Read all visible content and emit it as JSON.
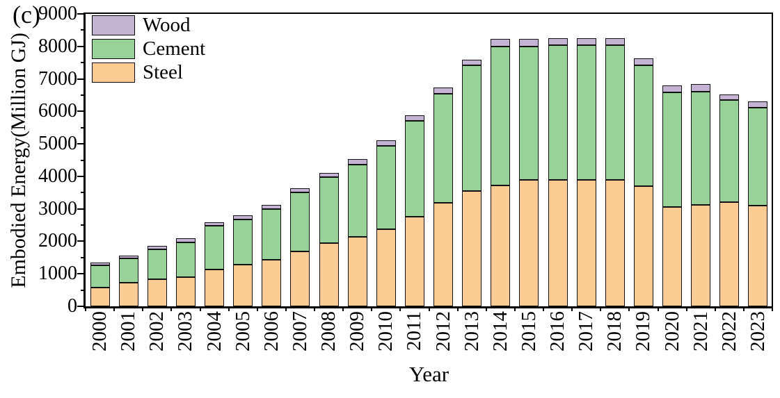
{
  "panel_label": "(c)",
  "chart_data": {
    "type": "bar",
    "stacked": true,
    "title": "",
    "xlabel": "Year",
    "ylabel": "Embodied Energy(Million GJ)",
    "ylim": [
      0,
      9000
    ],
    "ytick_step": 1000,
    "ytick_minor_step": 500,
    "grid": false,
    "legend_position": "top-left",
    "legend_order": [
      "Wood",
      "Cement",
      "Steel"
    ],
    "categories": [
      "2000",
      "2001",
      "2002",
      "2003",
      "2004",
      "2005",
      "2006",
      "2007",
      "2008",
      "2009",
      "2010",
      "2011",
      "2012",
      "2013",
      "2014",
      "2015",
      "2016",
      "2017",
      "2018",
      "2019",
      "2020",
      "2021",
      "2022",
      "2023"
    ],
    "series": [
      {
        "name": "Steel",
        "color": "#FACB92",
        "values": [
          570,
          735,
          830,
          890,
          1140,
          1280,
          1435,
          1685,
          1940,
          2145,
          2380,
          2750,
          3175,
          3550,
          3730,
          3900,
          3900,
          3900,
          3890,
          3695,
          3055,
          3120,
          3210,
          3100
        ]
      },
      {
        "name": "Cement",
        "color": "#99D299",
        "values": [
          700,
          745,
          930,
          1080,
          1350,
          1400,
          1560,
          1820,
          2035,
          2225,
          2555,
          2955,
          3360,
          3860,
          4265,
          4105,
          4145,
          4130,
          4155,
          3715,
          3520,
          3490,
          3140,
          3010
        ]
      },
      {
        "name": "Wood",
        "color": "#C5B3D4",
        "values": [
          85,
          85,
          100,
          115,
          105,
          115,
          130,
          140,
          140,
          170,
          165,
          175,
          190,
          190,
          230,
          220,
          215,
          230,
          215,
          230,
          215,
          230,
          170,
          190
        ]
      }
    ],
    "totals": [
      1355,
      1565,
      1860,
      2085,
      2595,
      2795,
      3125,
      3645,
      4115,
      4540,
      5100,
      5880,
      6725,
      7600,
      8225,
      8225,
      8260,
      8260,
      8260,
      7640,
      6790,
      6840,
      6520,
      6300
    ]
  }
}
